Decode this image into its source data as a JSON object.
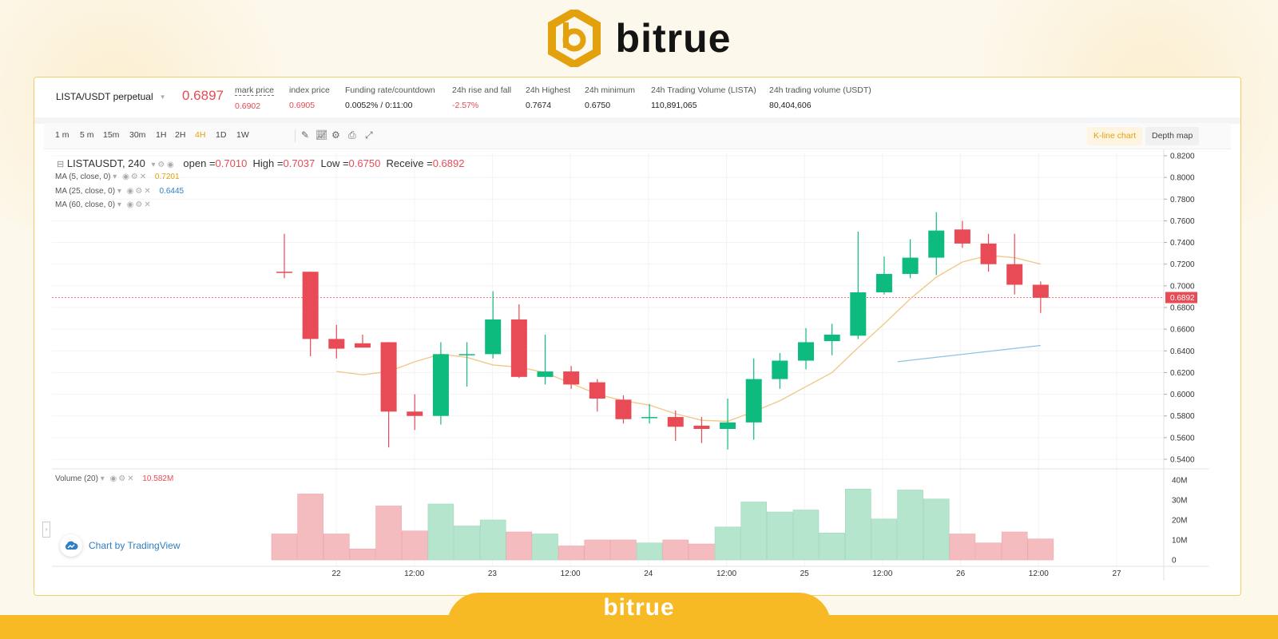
{
  "brand": {
    "name": "bitrue",
    "footer_name": "bitrue"
  },
  "ticker": {
    "pair": "LISTA/USDT perpetual",
    "last_price": "0.6897",
    "stats": [
      {
        "label": "mark price",
        "value": "0.6902",
        "red": true,
        "dashed": true
      },
      {
        "label": "index price",
        "value": "0.6905",
        "red": true
      },
      {
        "label": "Funding rate/countdown",
        "value": "0.0052% / 0:11:00"
      },
      {
        "label": "24h rise and fall",
        "value": "-2.57%",
        "red": true
      },
      {
        "label": "24h Highest",
        "value": "0.7674"
      },
      {
        "label": "24h minimum",
        "value": "0.6750"
      },
      {
        "label": "24h Trading Volume (LISTA)",
        "value": "110,891,065"
      },
      {
        "label": "24h trading volume (USDT)",
        "value": "80,404,606"
      }
    ]
  },
  "toolbar": {
    "timeframes": [
      "1 m",
      "5 m",
      "15m",
      "30m",
      "1H",
      "2H",
      "4H",
      "1D",
      "1W"
    ],
    "active_timeframe": "4H",
    "tools": [
      "pencil-icon",
      "indicator-icon",
      "settings-icon",
      "camera-icon",
      "fullscreen-icon"
    ],
    "kline_label": "K-line chart",
    "depth_label": "Depth map"
  },
  "legend": {
    "symbol": "LISTAUSDT, 240",
    "open_label": "open =",
    "open": "0.7010",
    "high_label": "High =",
    "high": "0.7037",
    "low_label": "Low =",
    "low": "0.6750",
    "close_label": "Receive =",
    "close": "0.6892",
    "ma": [
      {
        "label": "MA (5, close, 0)",
        "value": "0.7201"
      },
      {
        "label": "MA (25, close, 0)",
        "value": "0.6445"
      },
      {
        "label": "MA (60, close, 0)",
        "value": ""
      }
    ],
    "volume_label": "Volume (20)",
    "volume_value": "10.582M"
  },
  "tradingview_label": "Chart by TradingView",
  "colors": {
    "up": "#0ebb7f",
    "down": "#e84b55",
    "ma5": "#f0c98a",
    "ma25": "#8cc3e3",
    "accent": "#e3a20d"
  },
  "chart_data": {
    "type": "candlestick",
    "y_ticks": [
      "0.8200",
      "0.8000",
      "0.7800",
      "0.7600",
      "0.7400",
      "0.7200",
      "0.7000",
      "0.6800",
      "0.6600",
      "0.6400",
      "0.6200",
      "0.6000",
      "0.5800",
      "0.5600",
      "0.5400"
    ],
    "ylim": [
      0.535,
      0.82
    ],
    "current_price": "0.6892",
    "volume_ticks": [
      "40M",
      "30M",
      "20M",
      "10M",
      "0"
    ],
    "volume_max": 40,
    "x_ticks": [
      "22",
      "12:00",
      "23",
      "12:00",
      "24",
      "12:00",
      "25",
      "12:00",
      "26",
      "12:00",
      "27"
    ],
    "candles": [
      {
        "o": 0.713,
        "h": 0.748,
        "l": 0.707,
        "c": 0.712,
        "v": 13
      },
      {
        "o": 0.713,
        "h": 0.713,
        "l": 0.635,
        "c": 0.651,
        "v": 33
      },
      {
        "o": 0.651,
        "h": 0.664,
        "l": 0.633,
        "c": 0.642,
        "v": 13
      },
      {
        "o": 0.647,
        "h": 0.655,
        "l": 0.643,
        "c": 0.643,
        "v": 5.5
      },
      {
        "o": 0.648,
        "h": 0.648,
        "l": 0.551,
        "c": 0.584,
        "v": 27
      },
      {
        "o": 0.584,
        "h": 0.6,
        "l": 0.567,
        "c": 0.58,
        "v": 14.5
      },
      {
        "o": 0.58,
        "h": 0.648,
        "l": 0.572,
        "c": 0.637,
        "v": 28
      },
      {
        "o": 0.637,
        "h": 0.648,
        "l": 0.607,
        "c": 0.637,
        "v": 17
      },
      {
        "o": 0.637,
        "h": 0.695,
        "l": 0.633,
        "c": 0.669,
        "v": 20
      },
      {
        "o": 0.669,
        "h": 0.683,
        "l": 0.615,
        "c": 0.616,
        "v": 14
      },
      {
        "o": 0.616,
        "h": 0.655,
        "l": 0.609,
        "c": 0.621,
        "v": 13
      },
      {
        "o": 0.621,
        "h": 0.626,
        "l": 0.605,
        "c": 0.609,
        "v": 7
      },
      {
        "o": 0.611,
        "h": 0.614,
        "l": 0.584,
        "c": 0.596,
        "v": 10
      },
      {
        "o": 0.595,
        "h": 0.599,
        "l": 0.573,
        "c": 0.577,
        "v": 10
      },
      {
        "o": 0.578,
        "h": 0.591,
        "l": 0.573,
        "c": 0.579,
        "v": 8.5
      },
      {
        "o": 0.579,
        "h": 0.585,
        "l": 0.557,
        "c": 0.57,
        "v": 10
      },
      {
        "o": 0.571,
        "h": 0.579,
        "l": 0.555,
        "c": 0.568,
        "v": 8
      },
      {
        "o": 0.568,
        "h": 0.596,
        "l": 0.549,
        "c": 0.574,
        "v": 16.5
      },
      {
        "o": 0.574,
        "h": 0.633,
        "l": 0.558,
        "c": 0.614,
        "v": 29
      },
      {
        "o": 0.614,
        "h": 0.638,
        "l": 0.605,
        "c": 0.631,
        "v": 24
      },
      {
        "o": 0.631,
        "h": 0.661,
        "l": 0.623,
        "c": 0.648,
        "v": 25
      },
      {
        "o": 0.649,
        "h": 0.665,
        "l": 0.636,
        "c": 0.655,
        "v": 13.5
      },
      {
        "o": 0.654,
        "h": 0.75,
        "l": 0.651,
        "c": 0.694,
        "v": 35.5
      },
      {
        "o": 0.694,
        "h": 0.727,
        "l": 0.692,
        "c": 0.711,
        "v": 20.5
      },
      {
        "o": 0.711,
        "h": 0.743,
        "l": 0.707,
        "c": 0.726,
        "v": 35
      },
      {
        "o": 0.726,
        "h": 0.768,
        "l": 0.71,
        "c": 0.751,
        "v": 30.5
      },
      {
        "o": 0.752,
        "h": 0.76,
        "l": 0.735,
        "c": 0.739,
        "v": 13
      },
      {
        "o": 0.739,
        "h": 0.748,
        "l": 0.713,
        "c": 0.72,
        "v": 8.5
      },
      {
        "o": 0.72,
        "h": 0.748,
        "l": 0.692,
        "c": 0.701,
        "v": 14
      },
      {
        "o": 0.701,
        "h": 0.704,
        "l": 0.675,
        "c": 0.689,
        "v": 10.5
      }
    ],
    "ma5": [
      0.621,
      0.618,
      0.621,
      0.63,
      0.637,
      0.634,
      0.627,
      0.625,
      0.62,
      0.61,
      0.6,
      0.594,
      0.59,
      0.582,
      0.576,
      0.575,
      0.584,
      0.594,
      0.607,
      0.62,
      0.643,
      0.665,
      0.688,
      0.708,
      0.722,
      0.728,
      0.726,
      0.72
    ],
    "ma25": [
      0.63,
      0.645
    ]
  }
}
